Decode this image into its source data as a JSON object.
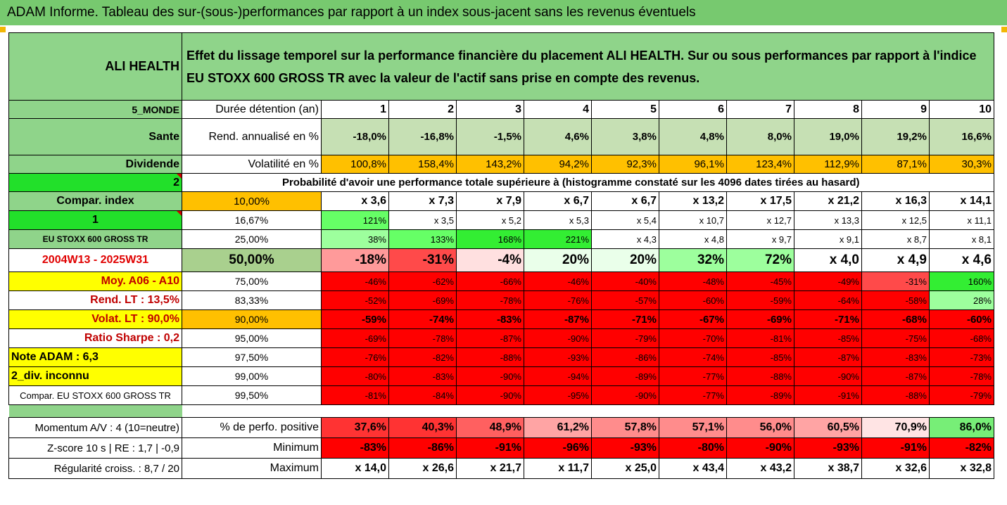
{
  "title": "ADAM Informe. Tableau des sur-(sous-)performances par rapport à un index sous-jacent sans les revenus éventuels",
  "asset": "ALI HEALTH",
  "description": "Effet du lissage temporel sur la performance financière du placement ALI HEALTH. Sur ou sous performances par rapport à l'indice EU STOXX 600 GROSS TR avec la valeur de l'actif sans prise en compte des revenus.",
  "header": {
    "left": "5_MONDE",
    "label": "Durée détention (an)",
    "years": [
      "1",
      "2",
      "3",
      "4",
      "5",
      "6",
      "7",
      "8",
      "9",
      "10"
    ]
  },
  "rows": [
    {
      "left": "Sante",
      "label": "Rend. annualisé en %",
      "values": [
        "-18,0%",
        "-16,8%",
        "-1,5%",
        "4,6%",
        "3,8%",
        "4,8%",
        "8,0%",
        "19,0%",
        "19,2%",
        "16,6%"
      ]
    },
    {
      "left": "Dividende",
      "label": "Volatilité en %",
      "values": [
        "100,8%",
        "158,4%",
        "143,2%",
        "94,2%",
        "92,3%",
        "96,1%",
        "123,4%",
        "112,9%",
        "87,1%",
        "30,3%"
      ]
    }
  ],
  "prob_row": {
    "left": "2",
    "text": "Probabilité d'avoir une performance totale supérieure à (histogramme constaté sur les 4096 dates tirées au hasard)"
  },
  "quantile_rows": [
    {
      "left": "Compar. index",
      "pct": "10,00%",
      "values": [
        "x 3,6",
        "x 7,3",
        "x 7,9",
        "x 6,7",
        "x 6,7",
        "x 13,2",
        "x 17,5",
        "x 21,2",
        "x 16,3",
        "x 14,1"
      ]
    },
    {
      "left": "1",
      "pct": "16,67%",
      "values": [
        "121%",
        "x 3,5",
        "x 5,2",
        "x 5,3",
        "x 5,4",
        "x 10,7",
        "x 12,7",
        "x 13,3",
        "x 12,5",
        "x 11,1"
      ]
    },
    {
      "left": "EU STOXX 600 GROSS TR",
      "pct": "25,00%",
      "values": [
        "38%",
        "133%",
        "168%",
        "221%",
        "x 4,3",
        "x 4,8",
        "x 9,7",
        "x 9,1",
        "x 8,7",
        "x 8,1"
      ]
    },
    {
      "left": "2004W13 - 2025W31",
      "pct": "50,00%",
      "values": [
        "-18%",
        "-31%",
        "-4%",
        "20%",
        "20%",
        "32%",
        "72%",
        "x 4,0",
        "x 4,9",
        "x 4,6"
      ]
    },
    {
      "left": "Moy. A06 - A10",
      "pct": "75,00%",
      "values": [
        "-46%",
        "-62%",
        "-66%",
        "-46%",
        "-40%",
        "-48%",
        "-45%",
        "-49%",
        "-31%",
        "160%"
      ]
    },
    {
      "left": "Rend. LT :   13,5%",
      "pct": "83,33%",
      "values": [
        "-52%",
        "-69%",
        "-78%",
        "-76%",
        "-57%",
        "-60%",
        "-59%",
        "-64%",
        "-58%",
        "28%"
      ]
    },
    {
      "left": "Volat. LT :   90,0%",
      "pct": "90,00%",
      "values": [
        "-59%",
        "-74%",
        "-83%",
        "-87%",
        "-71%",
        "-67%",
        "-69%",
        "-71%",
        "-68%",
        "-60%"
      ]
    },
    {
      "left": "Ratio Sharpe :    0,2",
      "pct": "95,00%",
      "values": [
        "-69%",
        "-78%",
        "-87%",
        "-90%",
        "-79%",
        "-70%",
        "-81%",
        "-85%",
        "-75%",
        "-68%"
      ]
    },
    {
      "left": "Note ADAM : 6,3",
      "pct": "97,50%",
      "values": [
        "-76%",
        "-82%",
        "-88%",
        "-93%",
        "-86%",
        "-74%",
        "-85%",
        "-87%",
        "-83%",
        "-73%"
      ]
    },
    {
      "left": "2_div. inconnu",
      "pct": "99,00%",
      "values": [
        "-80%",
        "-83%",
        "-90%",
        "-94%",
        "-89%",
        "-77%",
        "-88%",
        "-90%",
        "-87%",
        "-78%"
      ]
    },
    {
      "left": "Compar. EU STOXX 600 GROSS TR",
      "pct": "99,50%",
      "values": [
        "-81%",
        "-84%",
        "-90%",
        "-95%",
        "-90%",
        "-77%",
        "-89%",
        "-91%",
        "-88%",
        "-79%"
      ]
    }
  ],
  "bottom_rows": [
    {
      "left": "Momentum A/V : 4 (10=neutre)",
      "label": "% de perfo. positive",
      "values": [
        "37,6%",
        "40,3%",
        "48,9%",
        "61,2%",
        "57,8%",
        "57,1%",
        "56,0%",
        "60,5%",
        "70,9%",
        "86,0%"
      ]
    },
    {
      "left": "Z-score 10 s  | RE : 1,7 | -0,9",
      "label": "Minimum",
      "values": [
        "-83%",
        "-86%",
        "-91%",
        "-96%",
        "-93%",
        "-80%",
        "-90%",
        "-93%",
        "-91%",
        "-82%"
      ]
    },
    {
      "left": "Régularité croiss. : 8,7 / 20",
      "label": "Maximum",
      "values": [
        "x 14,0",
        "x 26,6",
        "x 21,7",
        "x 11,7",
        "x 25,0",
        "x 43,4",
        "x 43,2",
        "x 38,7",
        "x 32,6",
        "x 32,8"
      ]
    }
  ],
  "colors": {
    "green_header": "#8fd48a",
    "light_green": "#c6e0b4",
    "orange": "#ffc000",
    "yellow": "#ffff00",
    "red": "#ff0000",
    "bright_green": "#00ff00"
  }
}
